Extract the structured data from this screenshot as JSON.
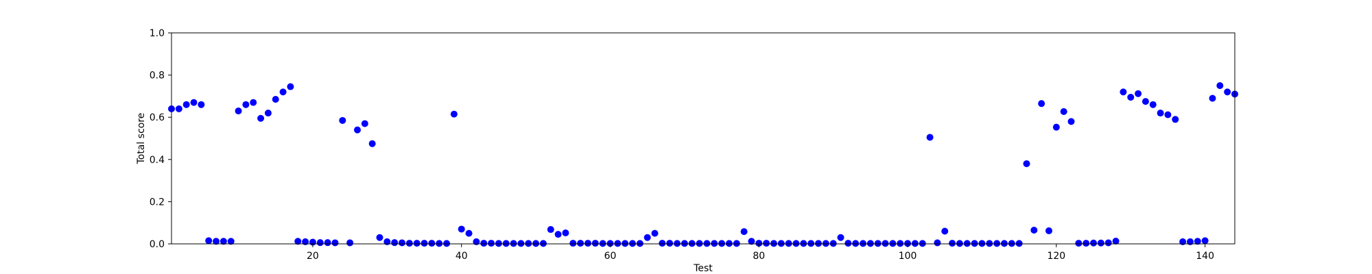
{
  "chart_data": {
    "type": "scatter",
    "xlabel": "Test",
    "ylabel": "Total score",
    "xlim": [
      1,
      144
    ],
    "ylim": [
      0.0,
      1.0
    ],
    "xticks": [
      20,
      40,
      60,
      80,
      100,
      120,
      140
    ],
    "yticks": [
      0.0,
      0.2,
      0.4,
      0.6,
      0.8,
      1.0
    ],
    "xtick_labels": [
      "20",
      "40",
      "60",
      "80",
      "100",
      "120",
      "140"
    ],
    "ytick_labels": [
      "0.0",
      "0.2",
      "0.4",
      "0.6",
      "0.8",
      "1.0"
    ],
    "grid": false,
    "marker_color": "#0000ff",
    "series": [
      {
        "x": [
          1,
          2,
          3,
          4,
          5,
          6,
          7,
          8,
          9,
          10,
          11,
          12,
          13,
          14,
          15,
          16,
          17,
          18,
          19,
          20,
          21,
          22,
          23,
          24,
          25,
          26,
          27,
          28,
          29,
          30,
          31,
          32,
          33,
          34,
          35,
          36,
          37,
          38,
          39,
          40,
          41,
          42,
          43,
          44,
          45,
          46,
          47,
          48,
          49,
          50,
          51,
          52,
          53,
          54,
          55,
          56,
          57,
          58,
          59,
          60,
          61,
          62,
          63,
          64,
          65,
          66,
          67,
          68,
          69,
          70,
          71,
          72,
          73,
          74,
          75,
          76,
          77,
          78,
          79,
          80,
          81,
          82,
          83,
          84,
          85,
          86,
          87,
          88,
          89,
          90,
          91,
          92,
          93,
          94,
          95,
          96,
          97,
          98,
          99,
          100,
          101,
          102,
          103,
          104,
          105,
          106,
          107,
          108,
          109,
          110,
          111,
          112,
          113,
          114,
          115,
          116,
          117,
          118,
          119,
          120,
          121,
          122,
          123,
          124,
          125,
          126,
          127,
          128,
          129,
          130,
          131,
          132,
          133,
          134,
          135,
          136,
          137,
          138,
          139,
          140,
          141,
          142,
          143,
          144
        ],
        "y": [
          0.64,
          0.64,
          0.66,
          0.67,
          0.66,
          0.015,
          0.012,
          0.012,
          0.012,
          0.63,
          0.66,
          0.67,
          0.595,
          0.62,
          0.685,
          0.72,
          0.745,
          0.012,
          0.01,
          0.008,
          0.006,
          0.006,
          0.005,
          0.585,
          0.005,
          0.54,
          0.57,
          0.475,
          0.03,
          0.01,
          0.006,
          0.005,
          0.003,
          0.003,
          0.003,
          0.003,
          0.002,
          0.002,
          0.615,
          0.07,
          0.05,
          0.01,
          0.003,
          0.003,
          0.002,
          0.002,
          0.002,
          0.002,
          0.002,
          0.002,
          0.002,
          0.068,
          0.045,
          0.052,
          0.003,
          0.003,
          0.003,
          0.003,
          0.002,
          0.002,
          0.002,
          0.002,
          0.002,
          0.002,
          0.03,
          0.05,
          0.003,
          0.003,
          0.002,
          0.002,
          0.002,
          0.002,
          0.002,
          0.002,
          0.002,
          0.002,
          0.002,
          0.058,
          0.012,
          0.003,
          0.003,
          0.002,
          0.002,
          0.002,
          0.002,
          0.002,
          0.002,
          0.002,
          0.002,
          0.002,
          0.03,
          0.003,
          0.002,
          0.002,
          0.002,
          0.002,
          0.002,
          0.002,
          0.002,
          0.002,
          0.002,
          0.002,
          0.505,
          0.005,
          0.06,
          0.003,
          0.002,
          0.002,
          0.002,
          0.002,
          0.002,
          0.002,
          0.002,
          0.002,
          0.002,
          0.38,
          0.065,
          0.665,
          0.062,
          0.553,
          0.627,
          0.58,
          0.003,
          0.003,
          0.004,
          0.004,
          0.005,
          0.013,
          0.72,
          0.695,
          0.712,
          0.675,
          0.66,
          0.62,
          0.612,
          0.59,
          0.01,
          0.01,
          0.012,
          0.015,
          0.69,
          0.75,
          0.72,
          0.71
        ]
      }
    ]
  }
}
